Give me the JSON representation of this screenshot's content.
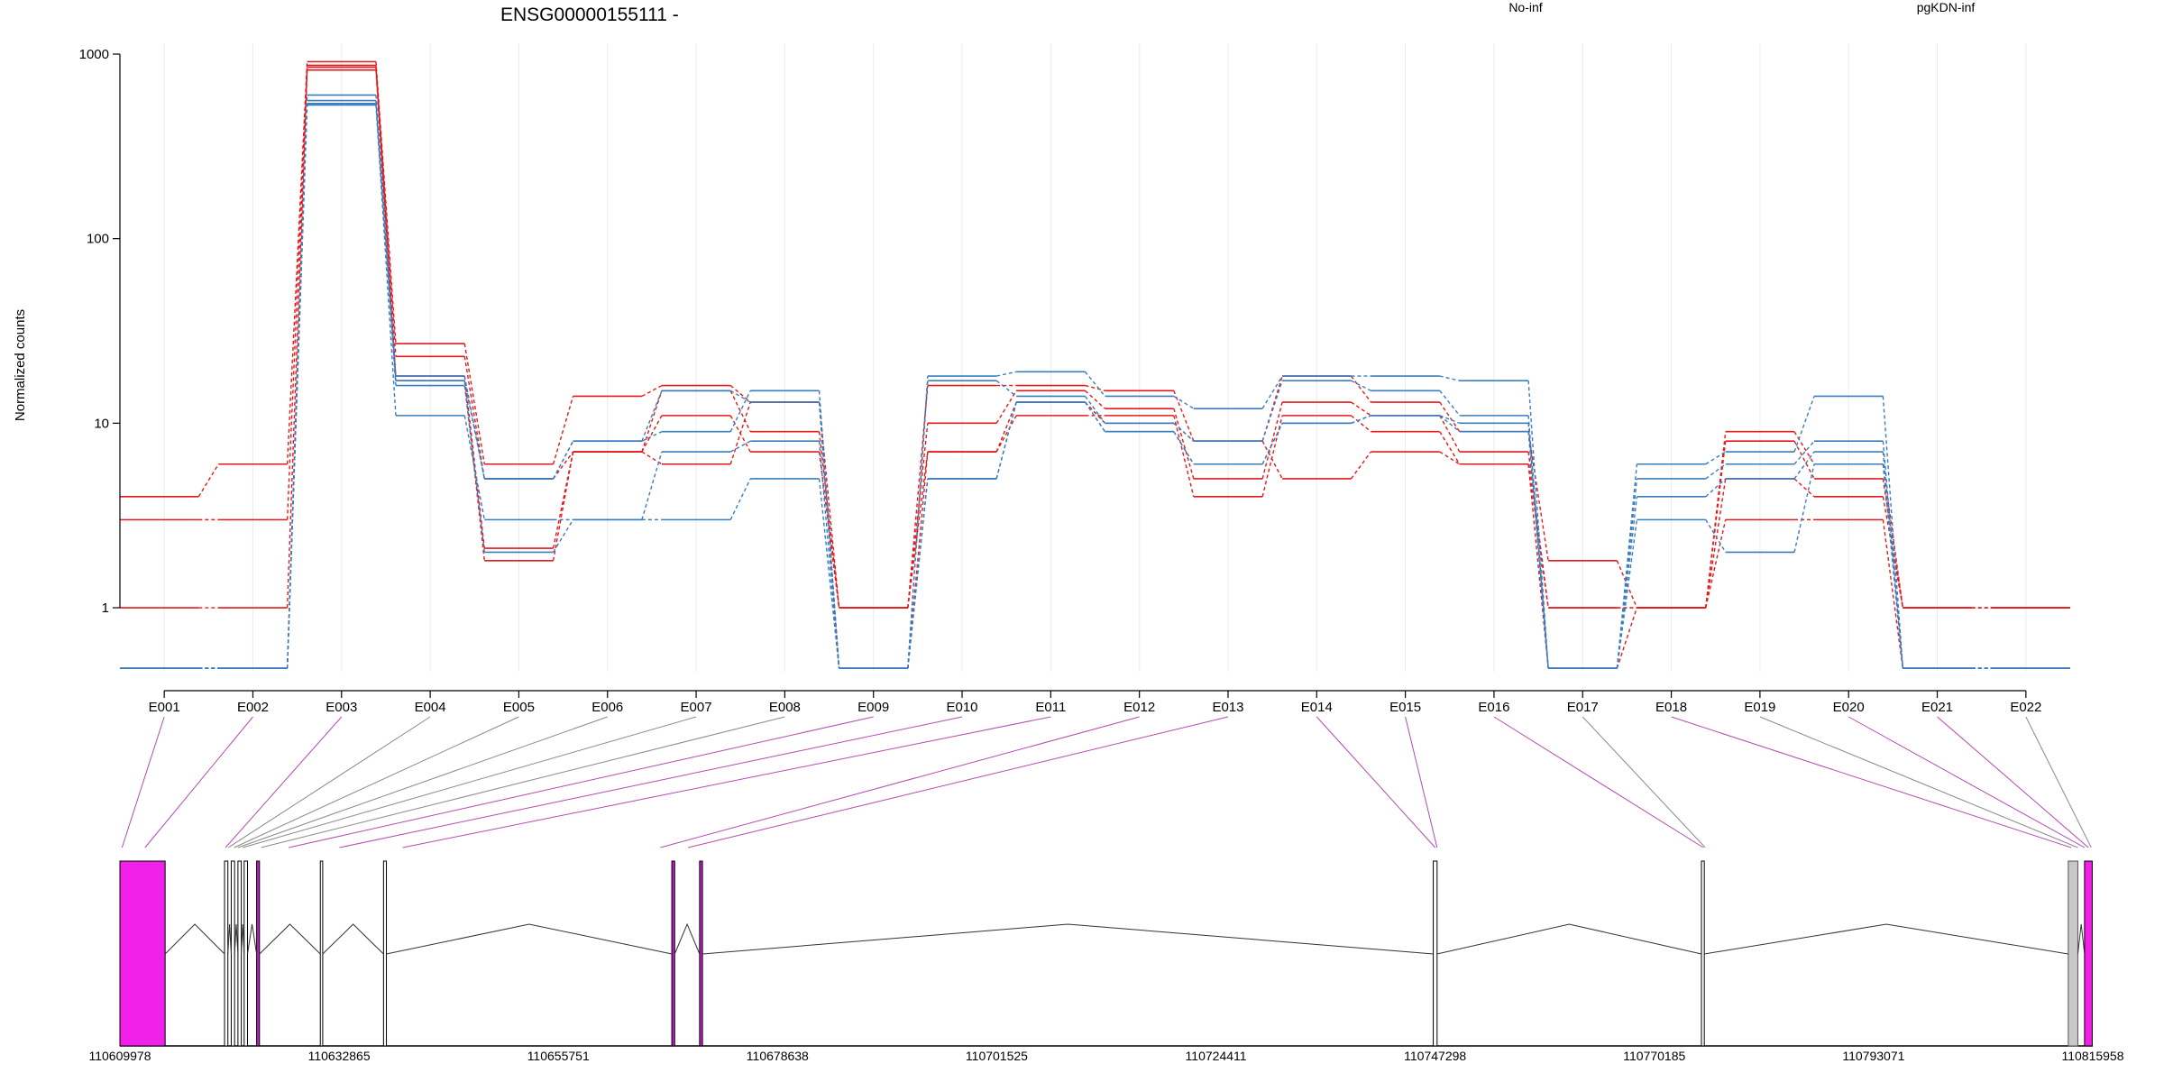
{
  "chart_data": {
    "type": "line",
    "title": "ENSG00000155111 -",
    "ylabel": "Normalized counts",
    "yscale": "log",
    "ylim": [
      0.45,
      1000
    ],
    "yticks": [
      1,
      10,
      100,
      1000
    ],
    "ytick_labels": [
      "1",
      "10",
      "100",
      "1000"
    ],
    "grid": "vertical",
    "legend_placement": "top",
    "categories": [
      "E001",
      "E002",
      "E003",
      "E004",
      "E005",
      "E006",
      "E007",
      "E008",
      "E009",
      "E010",
      "E011",
      "E012",
      "E013",
      "E014",
      "E015",
      "E016",
      "E017",
      "E018",
      "E019",
      "E020",
      "E021",
      "E022"
    ],
    "series": [
      {
        "name": "No-inf",
        "color": "#e31a1c",
        "values": [
          4,
          6,
          910,
          27,
          6,
          14,
          16,
          13,
          1,
          16,
          16,
          15,
          8,
          18,
          13,
          9,
          1.8,
          1,
          9,
          6,
          1,
          1
        ]
      },
      {
        "name": "No-inf",
        "color": "#e31a1c",
        "values": [
          3,
          3,
          870,
          23,
          5,
          7,
          15,
          9,
          1,
          10,
          15,
          12,
          5,
          13,
          11,
          7,
          1,
          1,
          8,
          5,
          1,
          1
        ]
      },
      {
        "name": "No-inf",
        "color": "#e31a1c",
        "values": [
          1,
          1,
          850,
          18,
          2.1,
          7,
          11,
          7,
          1,
          7,
          11,
          11,
          4,
          11,
          9,
          6,
          1,
          1,
          5,
          4,
          1,
          1
        ]
      },
      {
        "name": "No-inf",
        "color": "#e31a1c",
        "values": [
          0.47,
          0.47,
          820,
          17,
          1.8,
          7,
          6,
          13,
          0.47,
          7,
          13,
          10,
          8,
          5,
          7,
          6,
          0.47,
          1,
          3,
          3,
          0.47,
          0.47
        ]
      },
      {
        "name": "pgKDN-inf",
        "color": "#3a7dbf",
        "values": [
          0.47,
          0.47,
          600,
          18,
          5,
          8,
          9,
          15,
          0.47,
          18,
          19,
          14,
          12,
          18,
          18,
          17,
          0.47,
          6,
          7,
          14,
          0.47,
          0.47
        ]
      },
      {
        "name": "pgKDN-inf",
        "color": "#3a7dbf",
        "values": [
          0.47,
          0.47,
          560,
          17,
          5,
          8,
          15,
          13,
          0.47,
          17,
          14,
          10,
          8,
          17,
          15,
          11,
          0.47,
          5,
          6,
          8,
          0.47,
          0.47
        ]
      },
      {
        "name": "pgKDN-inf",
        "color": "#3a7dbf",
        "values": [
          0.47,
          0.47,
          540,
          11,
          3,
          3,
          7,
          8,
          0.47,
          5,
          13,
          9,
          6,
          10,
          11,
          10,
          0.47,
          4,
          5,
          7,
          0.47,
          0.47
        ]
      },
      {
        "name": "pgKDN-inf",
        "color": "#3a7dbf",
        "values": [
          0.47,
          0.47,
          530,
          16,
          2,
          3,
          3,
          5,
          0.47,
          5,
          13,
          9,
          6,
          10,
          11,
          9,
          0.47,
          3,
          2,
          6,
          0.47,
          0.47
        ]
      }
    ],
    "legend": [
      {
        "label": "No-inf",
        "color": "#e31a1c"
      },
      {
        "label": "pgKDN-inf",
        "color": "#3a7dbf"
      }
    ],
    "gene_model": {
      "axis_labels": [
        "110609978",
        "110632865",
        "110655751",
        "110678638",
        "110701525",
        "110724411",
        "110747298",
        "110770185",
        "110793071",
        "110815958"
      ],
      "range": [
        110609978,
        110815958
      ],
      "exon_genomic_centers": [
        110610200,
        110612600,
        110621000,
        110621300,
        110621900,
        110622300,
        110622800,
        110624700,
        110627600,
        110632900,
        110639500,
        110666400,
        110669300,
        110747300,
        110747500,
        110775300,
        110775500,
        110813700,
        110814400,
        110815100,
        110815500,
        110815800
      ],
      "highlighted_exons": [
        "E001",
        "E002",
        "E003",
        "E009",
        "E010",
        "E011",
        "E012",
        "E013",
        "E014",
        "E015",
        "E016",
        "E018",
        "E020",
        "E021"
      ],
      "features": [
        {
          "start": 110609978,
          "end": 110614700,
          "kind": "highlight-block"
        },
        {
          "start": 110620900,
          "end": 110621250,
          "kind": "exon"
        },
        {
          "start": 110621600,
          "end": 110621950,
          "kind": "exon"
        },
        {
          "start": 110622300,
          "end": 110622650,
          "kind": "exon"
        },
        {
          "start": 110622950,
          "end": 110623300,
          "kind": "exon"
        },
        {
          "start": 110624250,
          "end": 110624550,
          "kind": "highlight-exon"
        },
        {
          "start": 110630900,
          "end": 110631150,
          "kind": "exon"
        },
        {
          "start": 110637500,
          "end": 110637800,
          "kind": "exon"
        },
        {
          "start": 110667600,
          "end": 110667900,
          "kind": "highlight-exon"
        },
        {
          "start": 110670500,
          "end": 110670800,
          "kind": "highlight-exon"
        },
        {
          "start": 110747100,
          "end": 110747500,
          "kind": "exon"
        },
        {
          "start": 110775100,
          "end": 110775400,
          "kind": "exon"
        },
        {
          "start": 110813400,
          "end": 110814400,
          "kind": "grey-block"
        },
        {
          "start": 110815100,
          "end": 110815900,
          "kind": "highlight-block"
        }
      ]
    }
  }
}
